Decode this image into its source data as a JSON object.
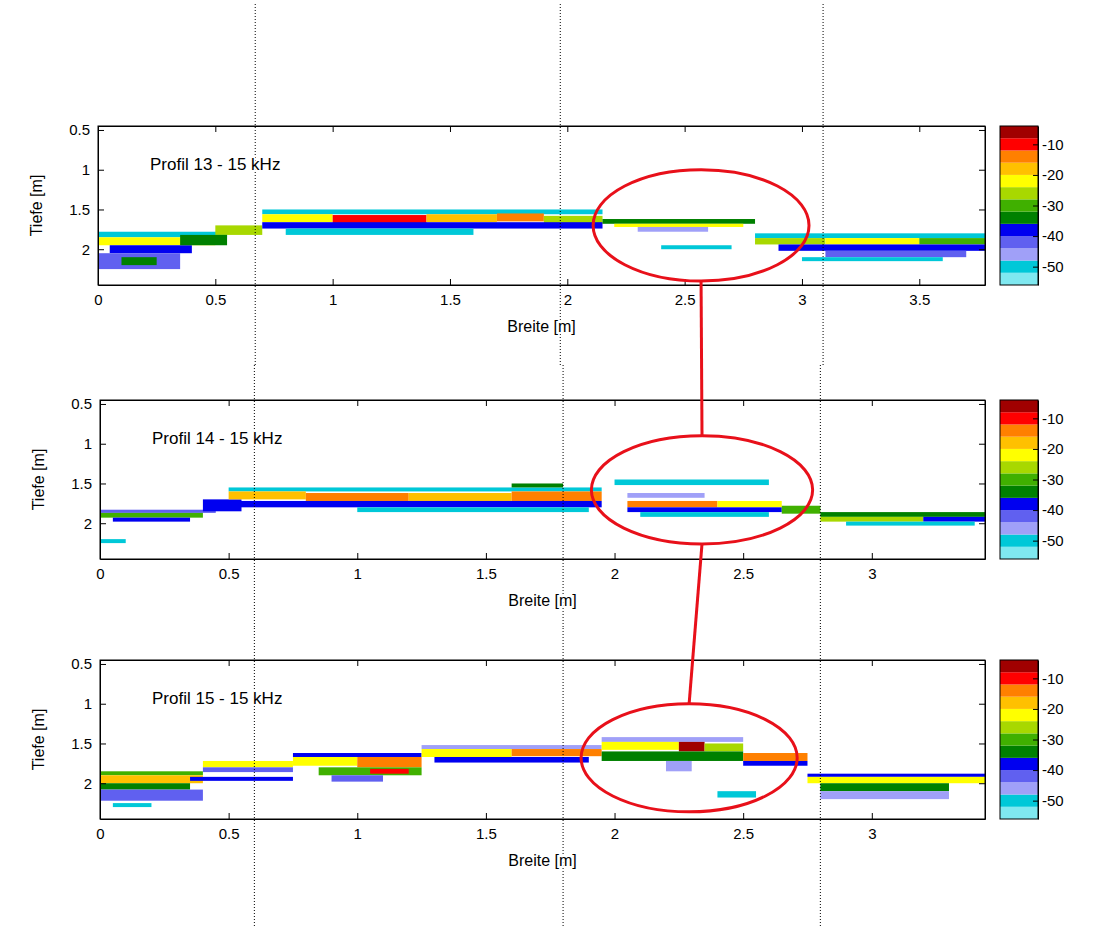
{
  "chart_data": [
    {
      "type": "heatmap",
      "title": "Profil 13 - 15 kHz",
      "xlabel": "Breite [m]",
      "ylabel": "Tiefe [m]",
      "xlim": [
        0,
        3.78
      ],
      "ylim": [
        0.45,
        2.45
      ],
      "xticks": [
        0,
        0.5,
        1,
        1.5,
        2,
        2.5,
        3,
        3.5
      ],
      "yticks": [
        0.5,
        1,
        1.5,
        2
      ],
      "reference_x": [
        0.67,
        1.97,
        3.09
      ],
      "highlight": {
        "x": 2.57,
        "depth": 1.7,
        "rx": 0.46,
        "ry": 0.7
      },
      "colorbar": {
        "range": [
          -56,
          -4
        ],
        "ticks": [
          -10,
          -20,
          -30,
          -40,
          -50
        ],
        "colors": [
          "#7fe8f0",
          "#00c8d8",
          "#a0a0f8",
          "#6060f0",
          "#0000f0",
          "#008000",
          "#40b000",
          "#a8d800",
          "#ffff00",
          "#ffc000",
          "#ff8000",
          "#ff0000",
          "#a00000"
        ]
      },
      "cells": [
        [
          0,
          0.55,
          1.78,
          1.85,
          -50
        ],
        [
          0,
          0.5,
          1.85,
          1.95,
          -24
        ],
        [
          0.05,
          0.4,
          1.95,
          2.05,
          -38
        ],
        [
          0,
          0.35,
          2.05,
          2.25,
          -44
        ],
        [
          0.1,
          0.25,
          2.1,
          2.2,
          -36
        ],
        [
          0.5,
          0.7,
          1.7,
          1.82,
          -26
        ],
        [
          0.35,
          0.55,
          1.82,
          1.95,
          -34
        ],
        [
          0.7,
          2.15,
          1.5,
          1.56,
          -50
        ],
        [
          0.7,
          1.0,
          1.56,
          1.66,
          -22
        ],
        [
          1.0,
          1.4,
          1.57,
          1.67,
          -12
        ],
        [
          1.4,
          1.7,
          1.56,
          1.66,
          -20
        ],
        [
          1.7,
          1.9,
          1.55,
          1.65,
          -14
        ],
        [
          1.9,
          2.15,
          1.58,
          1.68,
          -26
        ],
        [
          0.7,
          2.15,
          1.66,
          1.74,
          -38
        ],
        [
          0.8,
          1.6,
          1.74,
          1.82,
          -50
        ],
        [
          2.15,
          2.8,
          1.62,
          1.68,
          -34
        ],
        [
          2.2,
          2.75,
          1.68,
          1.72,
          -24
        ],
        [
          2.3,
          2.6,
          1.72,
          1.78,
          -48
        ],
        [
          2.4,
          2.7,
          1.95,
          2.0,
          -52
        ],
        [
          2.8,
          3.78,
          1.8,
          1.86,
          -50
        ],
        [
          2.8,
          3.1,
          1.86,
          1.94,
          -26
        ],
        [
          3.1,
          3.5,
          1.86,
          1.94,
          -22
        ],
        [
          3.5,
          3.78,
          1.86,
          1.94,
          -30
        ],
        [
          2.9,
          3.78,
          1.94,
          2.02,
          -38
        ],
        [
          3.1,
          3.7,
          2.02,
          2.1,
          -44
        ],
        [
          3.0,
          3.6,
          2.1,
          2.15,
          -50
        ]
      ]
    },
    {
      "type": "heatmap",
      "title": "Profil 14 - 15 kHz",
      "xlabel": "Breite [m]",
      "ylabel": "Tiefe [m]",
      "xlim": [
        0,
        3.44
      ],
      "ylim": [
        0.45,
        2.45
      ],
      "xticks": [
        0,
        0.5,
        1,
        1.5,
        2,
        2.5,
        3
      ],
      "yticks": [
        0.5,
        1,
        1.5,
        2
      ],
      "reference_x": [
        0.6,
        1.8,
        2.8
      ],
      "highlight": {
        "x": 2.34,
        "depth": 1.58,
        "rx": 0.43,
        "ry": 0.68
      },
      "colorbar": {
        "range": [
          -56,
          -4
        ],
        "ticks": [
          -10,
          -20,
          -30,
          -40,
          -50
        ],
        "colors": [
          "#7fe8f0",
          "#00c8d8",
          "#a0a0f8",
          "#6060f0",
          "#0000f0",
          "#008000",
          "#40b000",
          "#a8d800",
          "#ffff00",
          "#ffc000",
          "#ff8000",
          "#ff0000",
          "#a00000"
        ]
      },
      "cells": [
        [
          0,
          0.45,
          1.83,
          1.87,
          -44
        ],
        [
          0,
          0.4,
          1.87,
          1.93,
          -30
        ],
        [
          0.05,
          0.35,
          1.93,
          1.98,
          -40
        ],
        [
          0.4,
          0.55,
          1.7,
          1.85,
          -38
        ],
        [
          0.5,
          1.95,
          1.55,
          1.6,
          -50
        ],
        [
          0.5,
          0.8,
          1.6,
          1.7,
          -18
        ],
        [
          0.8,
          1.2,
          1.62,
          1.72,
          -14
        ],
        [
          1.2,
          1.6,
          1.62,
          1.72,
          -20
        ],
        [
          1.6,
          1.95,
          1.6,
          1.72,
          -16
        ],
        [
          0.5,
          1.95,
          1.72,
          1.8,
          -38
        ],
        [
          1.0,
          1.9,
          1.8,
          1.86,
          -50
        ],
        [
          1.6,
          1.8,
          1.5,
          1.55,
          -34
        ],
        [
          2.0,
          2.6,
          1.45,
          1.52,
          -52
        ],
        [
          2.05,
          2.35,
          1.62,
          1.68,
          -46
        ],
        [
          2.05,
          2.4,
          1.72,
          1.8,
          -16
        ],
        [
          2.4,
          2.65,
          1.72,
          1.8,
          -24
        ],
        [
          2.05,
          2.65,
          1.8,
          1.86,
          -40
        ],
        [
          2.1,
          2.6,
          1.86,
          1.92,
          -52
        ],
        [
          2.65,
          2.8,
          1.78,
          1.88,
          -30
        ],
        [
          2.8,
          3.44,
          1.86,
          1.92,
          -36
        ],
        [
          2.8,
          3.2,
          1.92,
          1.98,
          -26
        ],
        [
          3.2,
          3.44,
          1.92,
          1.98,
          -40
        ],
        [
          2.9,
          3.4,
          1.98,
          2.03,
          -50
        ],
        [
          0,
          0.1,
          2.2,
          2.25,
          -52
        ]
      ]
    },
    {
      "type": "heatmap",
      "title": "Profil 15 - 15 kHz",
      "xlabel": "Breite [m]",
      "ylabel": "Tiefe [m]",
      "xlim": [
        0,
        3.44
      ],
      "ylim": [
        0.45,
        2.45
      ],
      "xticks": [
        0,
        0.5,
        1,
        1.5,
        2,
        2.5,
        3
      ],
      "yticks": [
        0.5,
        1,
        1.5,
        2
      ],
      "reference_x": [
        0.6,
        1.8,
        2.8
      ],
      "highlight": {
        "x": 2.29,
        "depth": 1.68,
        "rx": 0.42,
        "ry": 0.68
      },
      "colorbar": {
        "range": [
          -56,
          -4
        ],
        "ticks": [
          -10,
          -20,
          -30,
          -40,
          -50
        ],
        "colors": [
          "#7fe8f0",
          "#00c8d8",
          "#a0a0f8",
          "#6060f0",
          "#0000f0",
          "#008000",
          "#40b000",
          "#a8d800",
          "#ffff00",
          "#ffc000",
          "#ff8000",
          "#ff0000",
          "#a00000"
        ]
      },
      "cells": [
        [
          0,
          0.4,
          1.85,
          1.9,
          -30
        ],
        [
          0,
          0.4,
          1.9,
          2.0,
          -20
        ],
        [
          0,
          0.35,
          2.0,
          2.08,
          -34
        ],
        [
          0,
          0.4,
          2.08,
          2.22,
          -42
        ],
        [
          0.4,
          0.75,
          1.72,
          1.8,
          -24
        ],
        [
          0.4,
          0.75,
          1.8,
          1.86,
          -44
        ],
        [
          0.35,
          0.75,
          1.92,
          1.97,
          -38
        ],
        [
          0.75,
          1.25,
          1.62,
          1.67,
          -40
        ],
        [
          0.75,
          1.0,
          1.67,
          1.78,
          -22
        ],
        [
          1.0,
          1.25,
          1.67,
          1.8,
          -16
        ],
        [
          0.85,
          1.25,
          1.8,
          1.9,
          -30
        ],
        [
          1.05,
          1.2,
          1.82,
          1.88,
          -10
        ],
        [
          0.9,
          1.1,
          1.9,
          1.98,
          -44
        ],
        [
          1.25,
          1.95,
          1.52,
          1.57,
          -46
        ],
        [
          1.25,
          1.6,
          1.57,
          1.67,
          -22
        ],
        [
          1.6,
          1.95,
          1.57,
          1.66,
          -16
        ],
        [
          1.3,
          1.9,
          1.67,
          1.74,
          -40
        ],
        [
          1.95,
          2.5,
          1.42,
          1.48,
          -48
        ],
        [
          1.95,
          2.25,
          1.48,
          1.58,
          -24
        ],
        [
          2.25,
          2.35,
          1.48,
          1.6,
          -8
        ],
        [
          2.35,
          2.5,
          1.5,
          1.6,
          -26
        ],
        [
          1.95,
          2.5,
          1.6,
          1.72,
          -36
        ],
        [
          2.2,
          2.3,
          1.72,
          1.85,
          -46
        ],
        [
          2.5,
          2.75,
          1.62,
          1.72,
          -16
        ],
        [
          2.5,
          2.75,
          1.72,
          1.78,
          -38
        ],
        [
          2.75,
          3.44,
          1.88,
          1.92,
          -40
        ],
        [
          2.75,
          3.44,
          1.92,
          2.0,
          -22
        ],
        [
          2.8,
          3.3,
          2.0,
          2.1,
          -36
        ],
        [
          2.8,
          3.3,
          2.1,
          2.2,
          -46
        ],
        [
          2.4,
          2.55,
          2.1,
          2.18,
          -50
        ],
        [
          0.05,
          0.2,
          2.25,
          2.3,
          -52
        ]
      ]
    }
  ]
}
